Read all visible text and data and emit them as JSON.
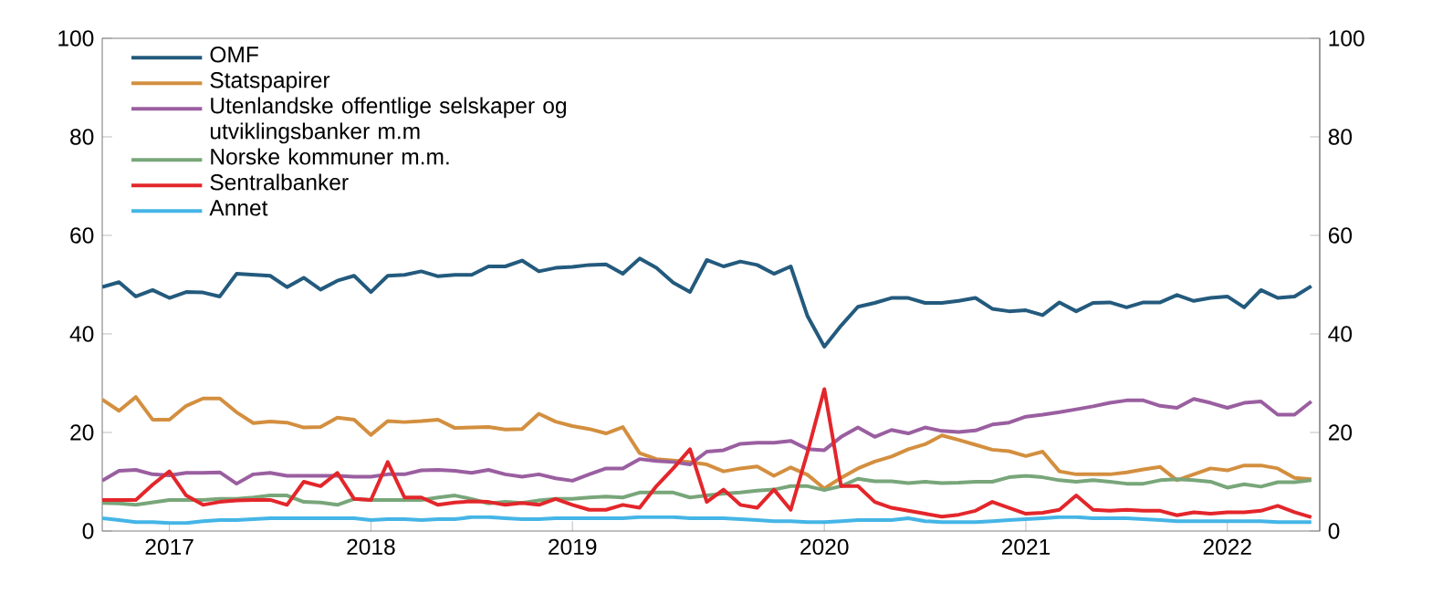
{
  "chart_data": {
    "type": "line",
    "categories": [
      null,
      null,
      null,
      null,
      "2017",
      null,
      null,
      null,
      null,
      null,
      null,
      null,
      null,
      null,
      null,
      null,
      "2018",
      null,
      null,
      null,
      null,
      null,
      null,
      null,
      null,
      null,
      null,
      null,
      "2019",
      null,
      null,
      null,
      null,
      null,
      null,
      null,
      null,
      null,
      null,
      null,
      null,
      null,
      null,
      "2020",
      null,
      null,
      null,
      null,
      null,
      null,
      null,
      null,
      null,
      null,
      null,
      "2021",
      null,
      null,
      null,
      null,
      null,
      null,
      null,
      null,
      null,
      null,
      null,
      "2022",
      null,
      null,
      null,
      null,
      null
    ],
    "series": [
      {
        "name": "OMF",
        "color": "#235a7d",
        "values": [
          49.5,
          50.5,
          47.6,
          48.9,
          47.3,
          48.5,
          48.4,
          47.6,
          52.2,
          52,
          51.8,
          49.5,
          51.4,
          49,
          50.8,
          51.8,
          48.5,
          51.8,
          52,
          52.7,
          51.7,
          52,
          52,
          53.7,
          53.7,
          54.9,
          52.7,
          53.4,
          53.6,
          54,
          54.1,
          52.2,
          55.3,
          53.4,
          50.4,
          48.5,
          55,
          53.7,
          54.7,
          54,
          52.2,
          53.7,
          43.6,
          37.4,
          41.7,
          45.5,
          46.3,
          47.3,
          47.3,
          46.3,
          46.3,
          46.7,
          47.3,
          45.1,
          44.6,
          44.8,
          43.8,
          46.4,
          44.6,
          46.3,
          46.4,
          45.4,
          46.4,
          46.4,
          47.9,
          46.7,
          47.3,
          47.6,
          45.4,
          48.9,
          47.3,
          47.6,
          49.7
        ]
      },
      {
        "name": "Statspapirer",
        "color": "#d38f3f",
        "values": [
          26.7,
          24.4,
          27.2,
          22.6,
          22.6,
          25.4,
          26.9,
          26.9,
          24.1,
          21.9,
          22.2,
          22,
          21,
          21.1,
          23,
          22.6,
          19.5,
          22.3,
          22.1,
          22.3,
          22.6,
          20.9,
          21,
          21.1,
          20.6,
          20.7,
          23.8,
          22.2,
          21.3,
          20.7,
          19.8,
          21.1,
          15.8,
          14.6,
          14.3,
          14,
          13.5,
          12.1,
          12.7,
          13.1,
          11.2,
          12.9,
          11.4,
          8.6,
          10.8,
          12.7,
          14.1,
          15.1,
          16.6,
          17.6,
          19.4,
          18.5,
          17.5,
          16.5,
          16.2,
          15.2,
          16.1,
          12.1,
          11.5,
          11.5,
          11.5,
          11.9,
          12.5,
          13,
          10.3,
          11.5,
          12.7,
          12.3,
          13.3,
          13.3,
          12.7,
          10.8,
          10.5
        ]
      },
      {
        "name": "Utenlandske offentlige selskaper og utviklingsbanker m.m",
        "color": "#9a5fa0",
        "values": [
          10.2,
          12.2,
          12.4,
          11.5,
          11.3,
          11.8,
          11.8,
          11.9,
          9.6,
          11.5,
          11.8,
          11.2,
          11.2,
          11.2,
          11.2,
          11,
          11,
          11.5,
          11.5,
          12.3,
          12.4,
          12.2,
          11.8,
          12.4,
          11.5,
          11,
          11.5,
          10.7,
          10.2,
          11.5,
          12.7,
          12.7,
          14.6,
          14.2,
          14,
          13.5,
          16.1,
          16.4,
          17.7,
          17.9,
          17.9,
          18.3,
          16.6,
          16.4,
          19.1,
          21,
          19.1,
          20.5,
          19.8,
          21,
          20.3,
          20.1,
          20.4,
          21.6,
          22,
          23.2,
          23.6,
          24.1,
          24.7,
          25.3,
          26,
          26.5,
          26.5,
          25.4,
          25,
          26.8,
          26,
          25,
          26,
          26.3,
          23.6,
          23.6,
          26.3
        ]
      },
      {
        "name": "Norske kommuner m.m.",
        "color": "#78a67a",
        "values": [
          5.7,
          5.6,
          5.3,
          5.8,
          6.3,
          6.3,
          6.3,
          6.5,
          6.5,
          6.8,
          7.2,
          7.2,
          5.9,
          5.8,
          5.3,
          6.5,
          6.3,
          6.3,
          6.3,
          6.3,
          6.8,
          7.2,
          6.5,
          5.6,
          5.9,
          5.7,
          6.2,
          6.5,
          6.5,
          6.8,
          7,
          6.8,
          7.8,
          7.8,
          7.8,
          6.8,
          7.2,
          7.6,
          7.8,
          8.2,
          8.4,
          9.1,
          9.1,
          8.3,
          9.1,
          10.6,
          10.1,
          10.1,
          9.7,
          10,
          9.7,
          9.8,
          10,
          10,
          10.9,
          11.2,
          10.9,
          10.3,
          10,
          10.3,
          10,
          9.6,
          9.6,
          10.3,
          10.5,
          10.3,
          10,
          8.8,
          9.5,
          9,
          9.9,
          9.9,
          10.3
        ]
      },
      {
        "name": "Sentralbanker",
        "color": "#e3262b",
        "values": [
          6.3,
          6.3,
          6.3,
          9.4,
          12.1,
          7.2,
          5.3,
          5.9,
          6.2,
          6.3,
          6.3,
          5.3,
          10,
          9.1,
          11.8,
          6.5,
          6.3,
          14,
          6.8,
          6.8,
          5.3,
          5.8,
          6,
          5.9,
          5.3,
          5.7,
          5.3,
          6.5,
          5.3,
          4.3,
          4.3,
          5.3,
          4.7,
          9.1,
          12.7,
          16.6,
          5.9,
          8.4,
          5.3,
          4.7,
          8.4,
          4.3,
          16,
          28.8,
          9.1,
          9.1,
          5.9,
          4.7,
          4.1,
          3.5,
          2.9,
          3.3,
          4.1,
          5.9,
          4.7,
          3.5,
          3.7,
          4.3,
          7.2,
          4.3,
          4.1,
          4.3,
          4.1,
          4.1,
          3.2,
          3.8,
          3.5,
          3.8,
          3.8,
          4.1,
          5.1,
          3.8,
          2.8
        ]
      },
      {
        "name": "Annet",
        "color": "#45b5e6",
        "values": [
          2.6,
          2.2,
          1.8,
          1.8,
          1.6,
          1.6,
          2,
          2.2,
          2.2,
          2.4,
          2.6,
          2.6,
          2.6,
          2.6,
          2.6,
          2.6,
          2.2,
          2.4,
          2.4,
          2.2,
          2.4,
          2.4,
          2.8,
          2.8,
          2.6,
          2.4,
          2.4,
          2.6,
          2.6,
          2.6,
          2.6,
          2.6,
          2.8,
          2.8,
          2.8,
          2.6,
          2.6,
          2.6,
          2.4,
          2.2,
          2,
          2,
          1.8,
          1.8,
          2,
          2.2,
          2.2,
          2.2,
          2.6,
          2,
          1.8,
          1.8,
          1.8,
          2,
          2.2,
          2.4,
          2.6,
          2.8,
          2.8,
          2.6,
          2.6,
          2.6,
          2.4,
          2.2,
          2,
          2,
          2,
          2,
          2,
          2,
          1.8,
          1.8,
          1.8
        ]
      }
    ],
    "ylim": [
      0,
      100
    ],
    "yticks": [
      0,
      20,
      40,
      60,
      80,
      100
    ],
    "y2lim": [
      0,
      100
    ],
    "y2ticks": [
      0,
      20,
      40,
      60,
      80,
      100
    ],
    "grid": false,
    "legend": "top left",
    "marker": "none",
    "line_style": "solid"
  }
}
